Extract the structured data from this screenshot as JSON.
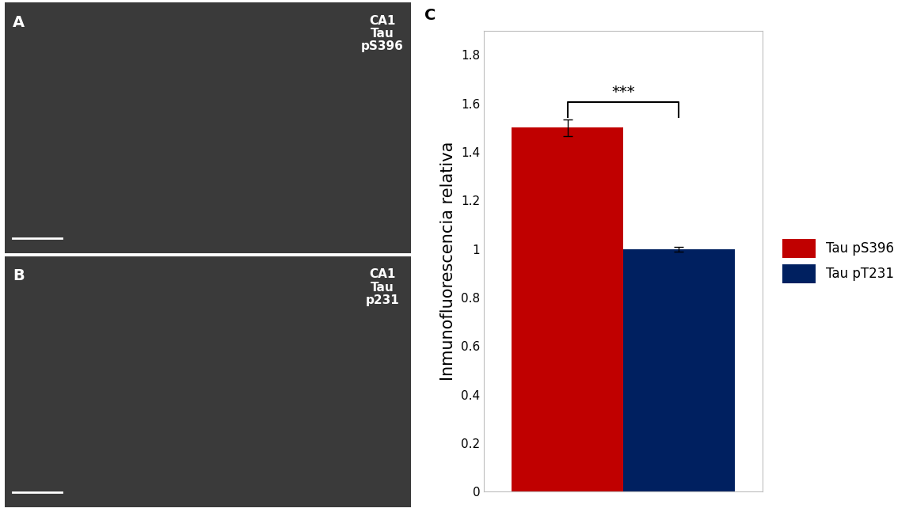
{
  "panels": [
    {
      "label": "A",
      "region": "CA1",
      "stain": "Tau\npS396"
    },
    {
      "label": "B",
      "region": "CA1",
      "stain": "Tau\np231"
    }
  ],
  "chart_data": {
    "type": "bar",
    "label": "C",
    "y_label": "Inmunofluorescencia relativa",
    "categories": [
      null
    ],
    "series": [
      {
        "name": "Tau pS396",
        "color": "#c00000",
        "values": [
          1.5
        ],
        "error": [
          0.035
        ]
      },
      {
        "name": "Tau pT231",
        "color": "#002060",
        "values": [
          1.0
        ],
        "error": [
          0.01
        ]
      }
    ],
    "ylim": [
      0,
      1.9
    ],
    "yticks": [
      0,
      {
        "value": 0.2,
        "label": "0.2"
      },
      {
        "value": 0.4,
        "label": "0.4"
      },
      {
        "value": 0.6,
        "label": "0.6"
      },
      {
        "value": 0.8,
        "label": "0.8"
      },
      1,
      {
        "value": 1.2,
        "label": "1.2"
      },
      {
        "value": 1.4,
        "label": "1.4"
      },
      {
        "value": 1.6,
        "label": "1.6"
      },
      {
        "value": 1.8,
        "label": "1.8"
      }
    ],
    "annotation": "***",
    "legend": "center left",
    "tick_labels": "y",
    "grid": false
  }
}
